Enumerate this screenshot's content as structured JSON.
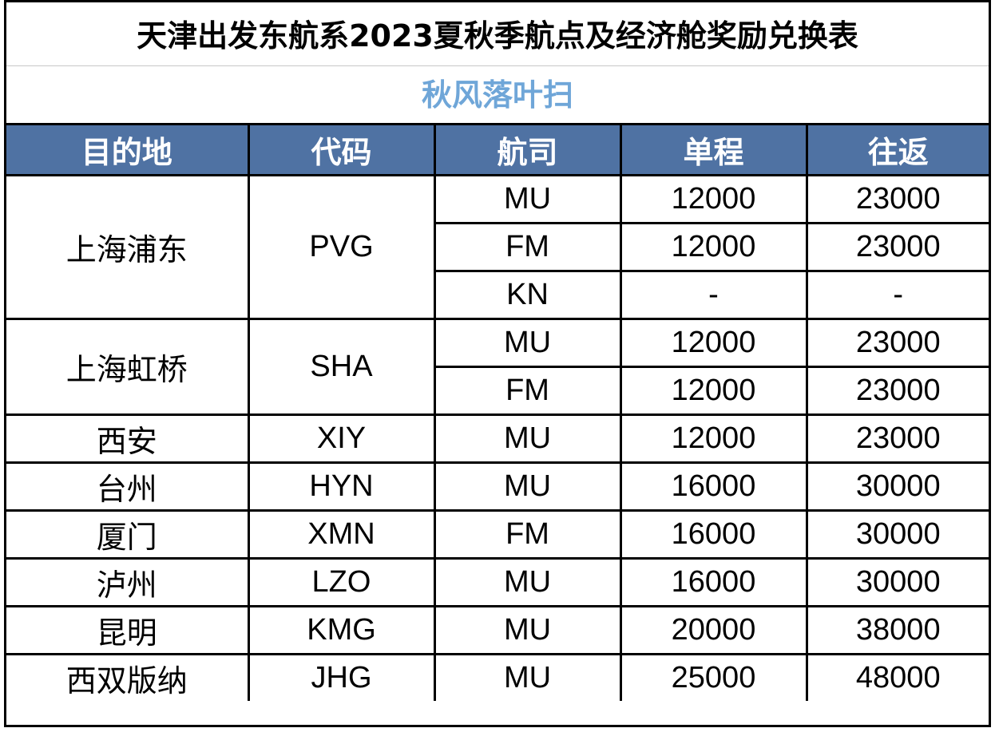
{
  "title": "天津出发东航系2023夏秋季航点及经济舱奖励兑换表",
  "subtitle": "秋风落叶扫",
  "colors": {
    "header_bg": "#4f72a3",
    "header_text": "#ffffff",
    "subtitle_text": "#6fa6d8",
    "border": "#000000"
  },
  "headers": [
    "目的地",
    "代码",
    "航司",
    "单程",
    "往返"
  ],
  "rows": [
    {
      "dest": "上海浦东",
      "code": "PVG",
      "airline": "MU",
      "one_way": "12000",
      "round_trip": "23000"
    },
    {
      "dest": "上海浦东",
      "code": "PVG",
      "airline": "FM",
      "one_way": "12000",
      "round_trip": "23000"
    },
    {
      "dest": "上海浦东",
      "code": "PVG",
      "airline": "KN",
      "one_way": "-",
      "round_trip": "-"
    },
    {
      "dest": "上海虹桥",
      "code": "SHA",
      "airline": "MU",
      "one_way": "12000",
      "round_trip": "23000"
    },
    {
      "dest": "上海虹桥",
      "code": "SHA",
      "airline": "FM",
      "one_way": "12000",
      "round_trip": "23000"
    },
    {
      "dest": "西安",
      "code": "XIY",
      "airline": "MU",
      "one_way": "12000",
      "round_trip": "23000"
    },
    {
      "dest": "台州",
      "code": "HYN",
      "airline": "MU",
      "one_way": "16000",
      "round_trip": "30000"
    },
    {
      "dest": "厦门",
      "code": "XMN",
      "airline": "FM",
      "one_way": "16000",
      "round_trip": "30000"
    },
    {
      "dest": "泸州",
      "code": "LZO",
      "airline": "MU",
      "one_way": "16000",
      "round_trip": "30000"
    },
    {
      "dest": "昆明",
      "code": "KMG",
      "airline": "MU",
      "one_way": "20000",
      "round_trip": "38000"
    },
    {
      "dest": "西双版纳",
      "code": "JHG",
      "airline": "MU",
      "one_way": "25000",
      "round_trip": "48000"
    }
  ]
}
